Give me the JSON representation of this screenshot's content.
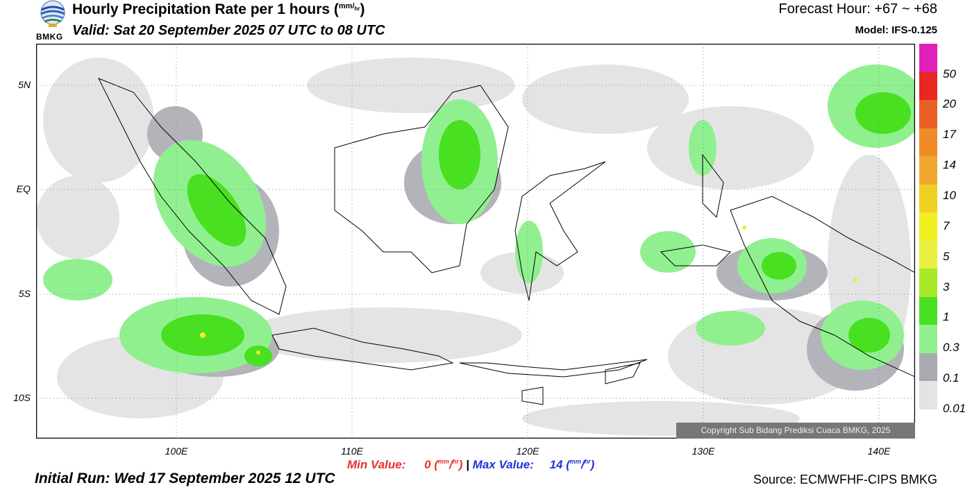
{
  "header": {
    "title_main": "Hourly Precipitation Rate per 1 hours (",
    "unit_top": "mm",
    "unit_bottom": "hr",
    "title_close": ")",
    "valid": "Valid: Sat 20 September 2025 07 UTC to 08 UTC",
    "forecast_hour": "Forecast Hour: +67 ~ +68",
    "model": "Model: IFS-0.125"
  },
  "logo": {
    "text": "BMKG",
    "icon": "bmkg-logo"
  },
  "map": {
    "lat_labels": [
      "5N",
      "EQ",
      "5S",
      "10S"
    ],
    "lon_labels": [
      "100E",
      "110E",
      "120E",
      "130E",
      "140E"
    ],
    "copyright": "Copyright Sub Bidang Prediksi Cuaca BMKG, 2025"
  },
  "legend": {
    "labels": [
      "50",
      "20",
      "17",
      "14",
      "10",
      "7",
      "5",
      "3",
      "1",
      "0.3",
      "0.1",
      "0.01"
    ],
    "colors": [
      "#e020b8",
      "#e82820",
      "#e86028",
      "#f08c28",
      "#f0a830",
      "#f0d020",
      "#f0f020",
      "#e8f040",
      "#a8e828",
      "#48e020",
      "#90f090",
      "#a8aab0",
      "#e4e4e4"
    ]
  },
  "stats": {
    "min_label": "Min Value:",
    "min_value": "0",
    "separator": "|",
    "max_label": "Max Value:",
    "max_value": "14",
    "unit_top": "mm",
    "unit_bottom": "hr"
  },
  "footer": {
    "initial_run": "Initial Run: Wed 17 September 2025 12 UTC",
    "source": "Source: ECMWFHF-CIPS BMKG"
  }
}
